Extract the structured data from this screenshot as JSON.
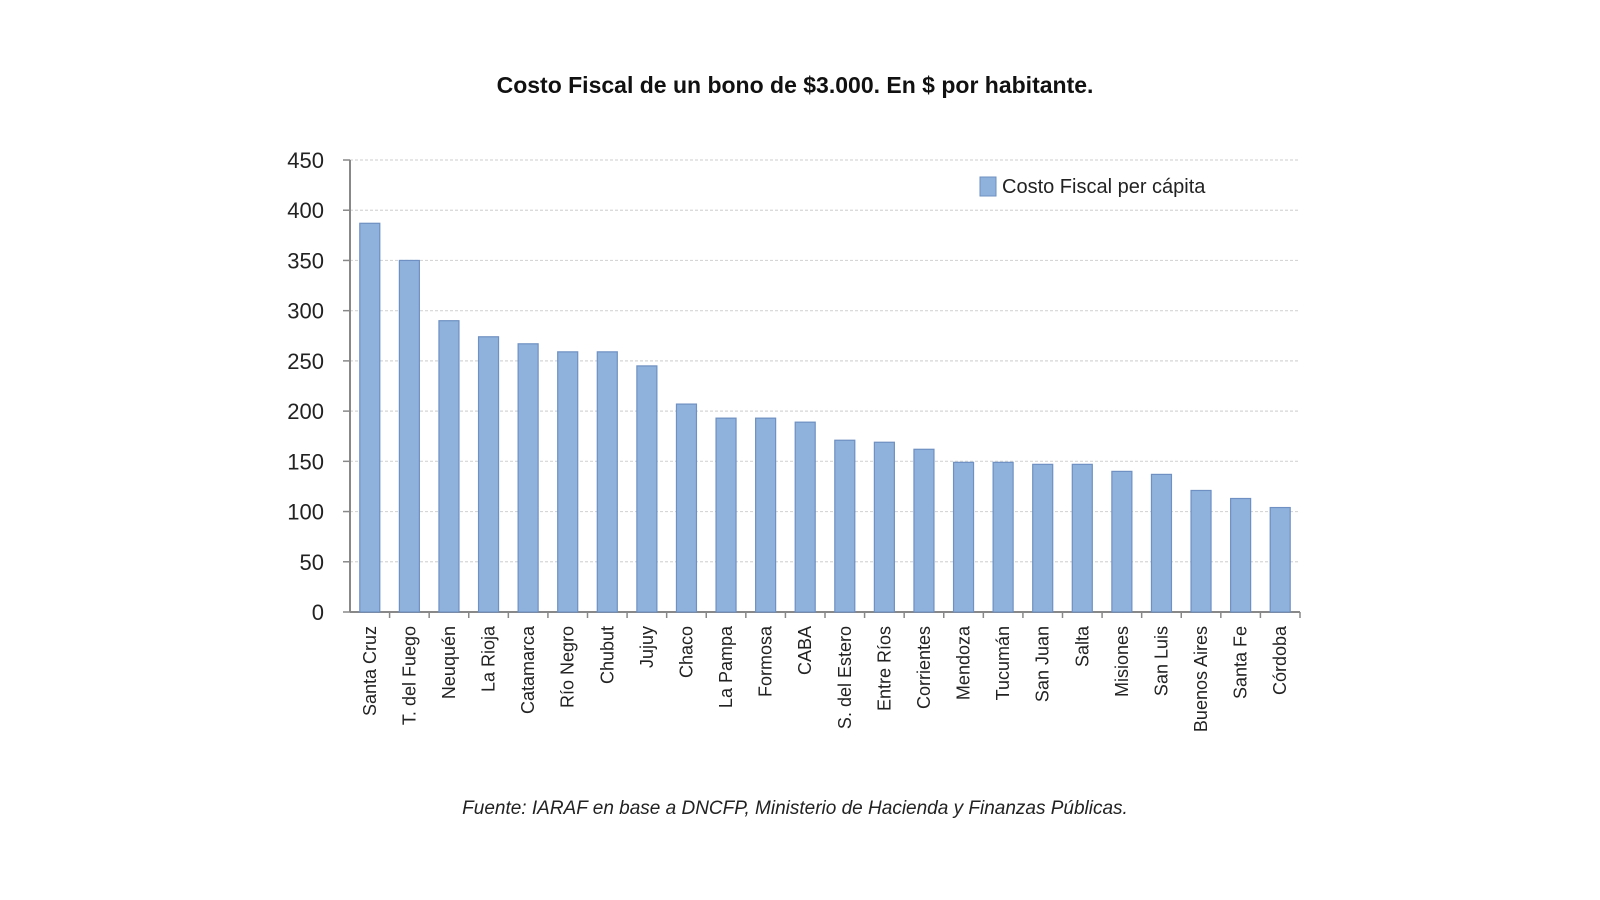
{
  "chart_data": {
    "type": "bar",
    "title": "Costo Fiscal de un bono de $3.000. En $ por habitante.",
    "xlabel": "",
    "ylabel": "",
    "ylim": [
      0,
      450
    ],
    "yticks": [
      0,
      50,
      100,
      150,
      200,
      250,
      300,
      350,
      400,
      450
    ],
    "grid": true,
    "legend_position": "top-right",
    "categories": [
      "Santa Cruz",
      "T. del Fuego",
      "Neuquén",
      "La Rioja",
      "Catamarca",
      "Río Negro",
      "Chubut",
      "Jujuy",
      "Chaco",
      "La Pampa",
      "Formosa",
      "CABA",
      "S. del Estero",
      "Entre Ríos",
      "Corrientes",
      "Mendoza",
      "Tucumán",
      "San Juan",
      "Salta",
      "Misiones",
      "San Luis",
      "Buenos Aires",
      "Santa Fe",
      "Córdoba"
    ],
    "series": [
      {
        "name": "Costo Fiscal per cápita",
        "color": "#8fb2dd",
        "values": [
          387,
          350,
          290,
          274,
          267,
          259,
          259,
          245,
          207,
          193,
          193,
          189,
          171,
          169,
          162,
          149,
          149,
          147,
          147,
          140,
          137,
          121,
          113,
          104
        ]
      }
    ],
    "source": "Fuente: IARAF en base a DNCFP, Ministerio de Hacienda y Finanzas Públicas."
  }
}
